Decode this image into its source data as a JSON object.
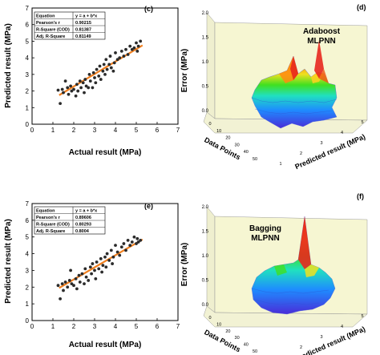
{
  "panels": {
    "c": {
      "tag": "(c)"
    },
    "d": {
      "tag": "(d)"
    },
    "e": {
      "tag": "(e)"
    },
    "f": {
      "tag": "(f)"
    }
  },
  "colors": {
    "point": "#2b2b2b",
    "fit_line": "#f07f1f",
    "floor_3d": "#f2f2d4",
    "wall_3d": "#f6f6d2",
    "surface_high": "#e8281e",
    "surface_low": "#4a2cd8"
  },
  "chart_data": [
    {
      "id": "c",
      "type": "scatter",
      "xlabel": "Actual result (MPa)",
      "ylabel": "Predicted result (MPa)",
      "xlim": [
        0,
        7
      ],
      "ylim": [
        0,
        7
      ],
      "xticks": [
        "0",
        "1",
        "2",
        "3",
        "4",
        "5",
        "6",
        "7"
      ],
      "yticks": [
        "0",
        "1",
        "2",
        "3",
        "4",
        "5",
        "6",
        "7"
      ],
      "legend_table": [
        [
          "Equation",
          "y = a + b*x"
        ],
        [
          "Pearson's r",
          "0.90215"
        ],
        [
          "R-Square (COD)",
          "0.81387"
        ],
        [
          "Adj. R-Square",
          "0.81149"
        ]
      ],
      "fit_line": {
        "x": [
          1.3,
          5.3
        ],
        "y": [
          1.75,
          4.75
        ]
      },
      "points": [
        [
          1.25,
          2.05
        ],
        [
          1.35,
          1.25
        ],
        [
          1.45,
          2.1
        ],
        [
          1.5,
          1.9
        ],
        [
          1.6,
          2.6
        ],
        [
          1.7,
          2.2
        ],
        [
          1.75,
          1.8
        ],
        [
          1.85,
          2.3
        ],
        [
          1.9,
          2.0
        ],
        [
          2.0,
          2.1
        ],
        [
          2.1,
          1.7
        ],
        [
          2.15,
          2.4
        ],
        [
          2.2,
          2.0
        ],
        [
          2.3,
          2.6
        ],
        [
          2.35,
          2.2
        ],
        [
          2.45,
          2.5
        ],
        [
          2.5,
          1.9
        ],
        [
          2.55,
          2.7
        ],
        [
          2.6,
          2.3
        ],
        [
          2.7,
          2.2
        ],
        [
          2.75,
          3.0
        ],
        [
          2.8,
          2.6
        ],
        [
          2.9,
          2.2
        ],
        [
          2.95,
          3.1
        ],
        [
          3.0,
          2.8
        ],
        [
          3.05,
          2.5
        ],
        [
          3.1,
          3.3
        ],
        [
          3.2,
          2.9
        ],
        [
          3.25,
          3.5
        ],
        [
          3.3,
          2.7
        ],
        [
          3.4,
          3.2
        ],
        [
          3.45,
          3.6
        ],
        [
          3.5,
          3.0
        ],
        [
          3.55,
          3.9
        ],
        [
          3.6,
          3.3
        ],
        [
          3.7,
          3.6
        ],
        [
          3.75,
          4.1
        ],
        [
          3.8,
          3.4
        ],
        [
          3.9,
          3.2
        ],
        [
          3.95,
          3.7
        ],
        [
          4.0,
          4.3
        ],
        [
          4.1,
          3.9
        ],
        [
          4.2,
          4.0
        ],
        [
          4.3,
          4.4
        ],
        [
          4.4,
          4.1
        ],
        [
          4.5,
          4.5
        ],
        [
          4.6,
          4.2
        ],
        [
          4.7,
          4.7
        ],
        [
          4.8,
          4.5
        ],
        [
          4.9,
          4.6
        ],
        [
          5.0,
          4.9
        ],
        [
          5.05,
          4.4
        ],
        [
          5.1,
          4.7
        ],
        [
          5.2,
          5.0
        ]
      ]
    },
    {
      "id": "e",
      "type": "scatter",
      "xlabel": "Actual result (MPa)",
      "ylabel": "Predicted result (MPa)",
      "xlim": [
        0,
        7
      ],
      "ylim": [
        0,
        7
      ],
      "xticks": [
        "0",
        "1",
        "2",
        "3",
        "4",
        "5",
        "6",
        "7"
      ],
      "yticks": [
        "0",
        "1",
        "2",
        "3",
        "4",
        "5",
        "6",
        "7"
      ],
      "legend_table": [
        [
          "Equation",
          "y = a + b*x"
        ],
        [
          "Pearson's r",
          "0.89606"
        ],
        [
          "R-Square (COD)",
          "0.80293"
        ],
        [
          "Adj. R-Square",
          "0.8004"
        ]
      ],
      "fit_line": {
        "x": [
          1.3,
          5.3
        ],
        "y": [
          1.95,
          4.85
        ]
      },
      "points": [
        [
          1.25,
          2.1
        ],
        [
          1.35,
          1.3
        ],
        [
          1.45,
          2.2
        ],
        [
          1.5,
          1.8
        ],
        [
          1.6,
          2.3
        ],
        [
          1.7,
          2.0
        ],
        [
          1.8,
          2.4
        ],
        [
          1.85,
          3.0
        ],
        [
          1.9,
          2.2
        ],
        [
          2.0,
          2.1
        ],
        [
          2.1,
          2.5
        ],
        [
          2.15,
          1.9
        ],
        [
          2.25,
          2.7
        ],
        [
          2.3,
          2.3
        ],
        [
          2.4,
          2.8
        ],
        [
          2.5,
          2.2
        ],
        [
          2.55,
          3.1
        ],
        [
          2.6,
          2.6
        ],
        [
          2.7,
          2.4
        ],
        [
          2.8,
          3.2
        ],
        [
          2.85,
          2.8
        ],
        [
          2.9,
          3.4
        ],
        [
          3.0,
          3.0
        ],
        [
          3.05,
          2.5
        ],
        [
          3.1,
          3.5
        ],
        [
          3.2,
          3.1
        ],
        [
          3.3,
          3.7
        ],
        [
          3.35,
          2.9
        ],
        [
          3.4,
          3.3
        ],
        [
          3.5,
          3.8
        ],
        [
          3.55,
          3.2
        ],
        [
          3.6,
          4.0
        ],
        [
          3.7,
          3.6
        ],
        [
          3.8,
          4.2
        ],
        [
          3.85,
          3.4
        ],
        [
          3.9,
          3.8
        ],
        [
          4.0,
          4.5
        ],
        [
          4.1,
          4.1
        ],
        [
          4.2,
          3.9
        ],
        [
          4.3,
          4.4
        ],
        [
          4.4,
          4.6
        ],
        [
          4.5,
          4.2
        ],
        [
          4.6,
          4.8
        ],
        [
          4.7,
          4.5
        ],
        [
          4.8,
          4.7
        ],
        [
          4.9,
          5.0
        ],
        [
          5.0,
          4.6
        ],
        [
          5.05,
          4.9
        ],
        [
          5.1,
          4.7
        ],
        [
          5.2,
          4.8
        ]
      ]
    },
    {
      "id": "d",
      "type": "surface-3d",
      "title": "Adaboost\nMLPNN",
      "title_lines": [
        "Adaboost",
        "MLPNN"
      ],
      "zlabel": "Error (MPa)",
      "xlabel": "Data Points",
      "ylabel": "Predicted result (MPa)",
      "zticks": [
        "0.0",
        "0.5",
        "1.0",
        "1.5",
        "2.0"
      ],
      "x_ticks": [
        "0",
        "10",
        "20",
        "30",
        "40",
        "50"
      ],
      "y_ticks": [
        "1",
        "2",
        "3",
        "4",
        "5"
      ],
      "zlim": [
        0,
        2.0
      ]
    },
    {
      "id": "f",
      "type": "surface-3d",
      "title": "Bagging\nMLPNN",
      "title_lines": [
        "Bagging",
        "MLPNN"
      ],
      "zlabel": "Error (MPa)",
      "xlabel": "Data Points",
      "ylabel": "Predicted result (MPa)",
      "zticks": [
        "0.0",
        "0.5",
        "1.0",
        "1.5",
        "2.0"
      ],
      "x_ticks": [
        "0",
        "10",
        "20",
        "30",
        "40",
        "50"
      ],
      "y_ticks": [
        "1",
        "2",
        "3",
        "4",
        "5"
      ],
      "zlim": [
        0,
        2.0
      ]
    }
  ]
}
